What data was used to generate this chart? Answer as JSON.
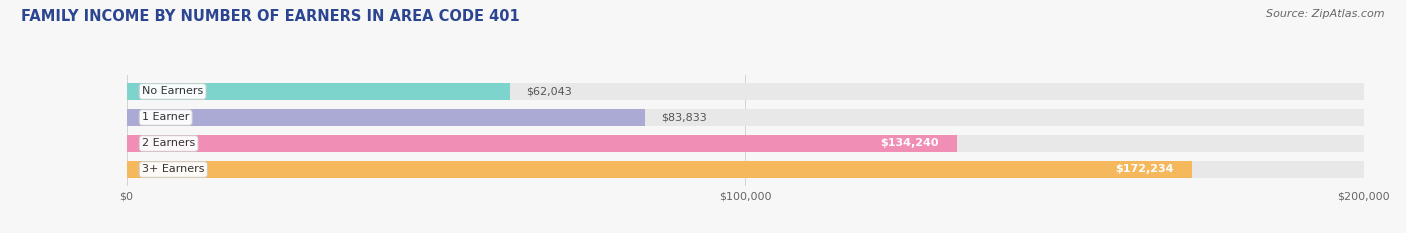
{
  "title": "FAMILY INCOME BY NUMBER OF EARNERS IN AREA CODE 401",
  "source": "Source: ZipAtlas.com",
  "categories": [
    "No Earners",
    "1 Earner",
    "2 Earners",
    "3+ Earners"
  ],
  "values": [
    62043,
    83833,
    134240,
    172234
  ],
  "value_labels": [
    "$62,043",
    "$83,833",
    "$134,240",
    "$172,234"
  ],
  "bar_colors": [
    "#7DD4CC",
    "#AAAAD4",
    "#F08EB5",
    "#F5B85C"
  ],
  "bar_bg_color": "#E8E8E8",
  "xlim": [
    0,
    200000
  ],
  "xtick_labels": [
    "$0",
    "$100,000",
    "$200,000"
  ],
  "title_color": "#2B4590",
  "title_fontsize": 10.5,
  "source_fontsize": 8,
  "bar_height": 0.62,
  "fig_bg_color": "#F7F7F7",
  "value_label_dark": "#555555",
  "value_label_light": "#FFFFFF"
}
